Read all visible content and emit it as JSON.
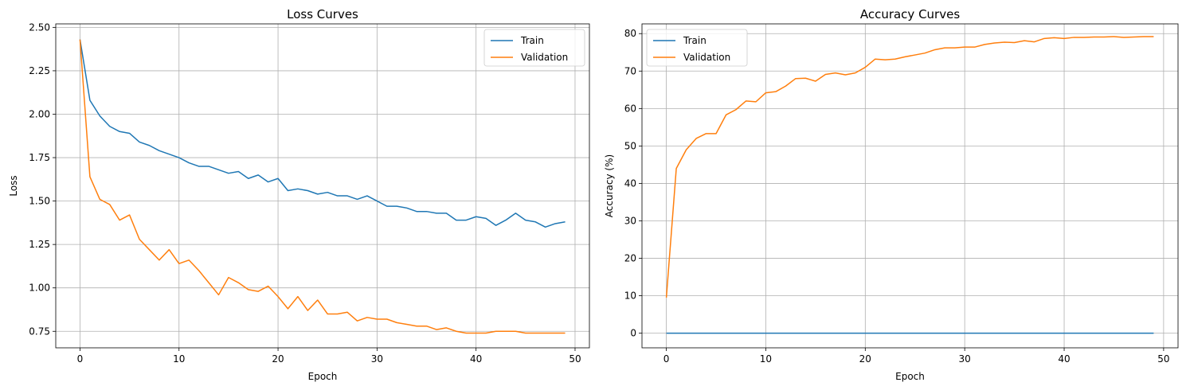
{
  "chart_data": [
    {
      "type": "line",
      "title": "Loss Curves",
      "xlabel": "Epoch",
      "ylabel": "Loss",
      "xlim": [
        -2.45,
        51.45
      ],
      "ylim": [
        0.655,
        2.52
      ],
      "xticks": [
        0,
        10,
        20,
        30,
        40,
        50
      ],
      "yticks": [
        0.75,
        1.0,
        1.25,
        1.5,
        1.75,
        2.0,
        2.25,
        2.5
      ],
      "ytick_labels": [
        "0.75",
        "1.00",
        "1.25",
        "1.50",
        "1.75",
        "2.00",
        "2.25",
        "2.50"
      ],
      "grid": true,
      "legend_position": "top-right",
      "series": [
        {
          "name": "Train",
          "color": "#1f77b4",
          "values": [
            2.43,
            2.08,
            1.99,
            1.93,
            1.9,
            1.89,
            1.84,
            1.82,
            1.79,
            1.77,
            1.75,
            1.72,
            1.7,
            1.7,
            1.68,
            1.66,
            1.67,
            1.63,
            1.65,
            1.61,
            1.63,
            1.56,
            1.57,
            1.56,
            1.54,
            1.55,
            1.53,
            1.53,
            1.51,
            1.53,
            1.5,
            1.47,
            1.47,
            1.46,
            1.44,
            1.44,
            1.43,
            1.43,
            1.39,
            1.39,
            1.41,
            1.4,
            1.36,
            1.39,
            1.43,
            1.39,
            1.38,
            1.35,
            1.37,
            1.38
          ]
        },
        {
          "name": "Validation",
          "color": "#ff7f0e",
          "values": [
            2.43,
            1.64,
            1.51,
            1.48,
            1.39,
            1.42,
            1.28,
            1.22,
            1.16,
            1.22,
            1.14,
            1.16,
            1.1,
            1.03,
            0.96,
            1.06,
            1.03,
            0.99,
            0.98,
            1.01,
            0.95,
            0.88,
            0.95,
            0.87,
            0.93,
            0.85,
            0.85,
            0.86,
            0.81,
            0.83,
            0.82,
            0.82,
            0.8,
            0.79,
            0.78,
            0.78,
            0.76,
            0.77,
            0.75,
            0.74,
            0.74,
            0.74,
            0.75,
            0.75,
            0.75,
            0.74,
            0.74,
            0.74,
            0.74,
            0.74
          ]
        }
      ]
    },
    {
      "type": "line",
      "title": "Accuracy Curves",
      "xlabel": "Epoch",
      "ylabel": "Accuracy (%)",
      "xlim": [
        -2.45,
        51.45
      ],
      "ylim": [
        -3.9,
        82.6
      ],
      "xticks": [
        0,
        10,
        20,
        30,
        40,
        50
      ],
      "yticks": [
        0,
        10,
        20,
        30,
        40,
        50,
        60,
        70,
        80
      ],
      "ytick_labels": [
        "0",
        "10",
        "20",
        "30",
        "40",
        "50",
        "60",
        "70",
        "80"
      ],
      "grid": true,
      "legend_position": "top-left",
      "series": [
        {
          "name": "Train",
          "color": "#1f77b4",
          "values": [
            0,
            0,
            0,
            0,
            0,
            0,
            0,
            0,
            0,
            0,
            0,
            0,
            0,
            0,
            0,
            0,
            0,
            0,
            0,
            0,
            0,
            0,
            0,
            0,
            0,
            0,
            0,
            0,
            0,
            0,
            0,
            0,
            0,
            0,
            0,
            0,
            0,
            0,
            0,
            0,
            0,
            0,
            0,
            0,
            0,
            0,
            0,
            0,
            0,
            0
          ]
        },
        {
          "name": "Validation",
          "color": "#ff7f0e",
          "values": [
            9.5,
            44.0,
            49.0,
            52.0,
            53.3,
            53.3,
            58.3,
            59.7,
            62.0,
            61.8,
            64.2,
            64.5,
            66.0,
            68.0,
            68.1,
            67.3,
            69.1,
            69.5,
            69.0,
            69.5,
            71.0,
            73.2,
            73.0,
            73.2,
            73.8,
            74.3,
            74.8,
            75.7,
            76.2,
            76.2,
            76.4,
            76.4,
            77.1,
            77.5,
            77.7,
            77.6,
            78.1,
            77.8,
            78.7,
            78.9,
            78.7,
            79.0,
            79.0,
            79.1,
            79.1,
            79.2,
            79.0,
            79.1,
            79.2,
            79.2
          ]
        }
      ]
    }
  ]
}
